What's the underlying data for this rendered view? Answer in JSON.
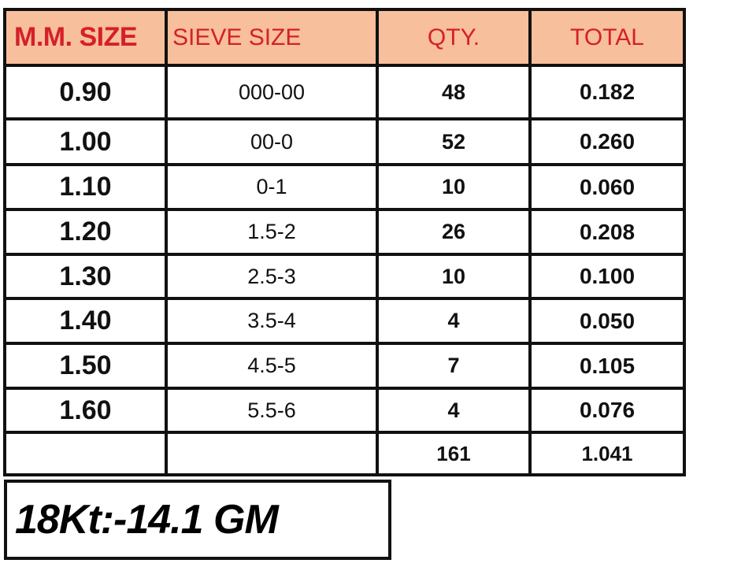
{
  "colors": {
    "header_bg": "#f7bf9b",
    "header_text": "#d4202a",
    "border": "#111111"
  },
  "table": {
    "headers": [
      "M.M. SIZE",
      "SIEVE SIZE",
      "QTY.",
      "TOTAL"
    ],
    "rows": [
      [
        "0.90",
        "000-00",
        "48",
        "0.182"
      ],
      [
        "1.00",
        "00-0",
        "52",
        "0.260"
      ],
      [
        "1.10",
        "0-1",
        "10",
        "0.060"
      ],
      [
        "1.20",
        "1.5-2",
        "26",
        "0.208"
      ],
      [
        "1.30",
        "2.5-3",
        "10",
        "0.100"
      ],
      [
        "1.40",
        "3.5-4",
        "4",
        "0.050"
      ],
      [
        "1.50",
        "4.5-5",
        "7",
        "0.105"
      ],
      [
        "1.60",
        "5.5-6",
        "4",
        "0.076"
      ]
    ],
    "totals": {
      "qty": "161",
      "total": "1.041"
    }
  },
  "note": "18Kt:-14.1 GM"
}
